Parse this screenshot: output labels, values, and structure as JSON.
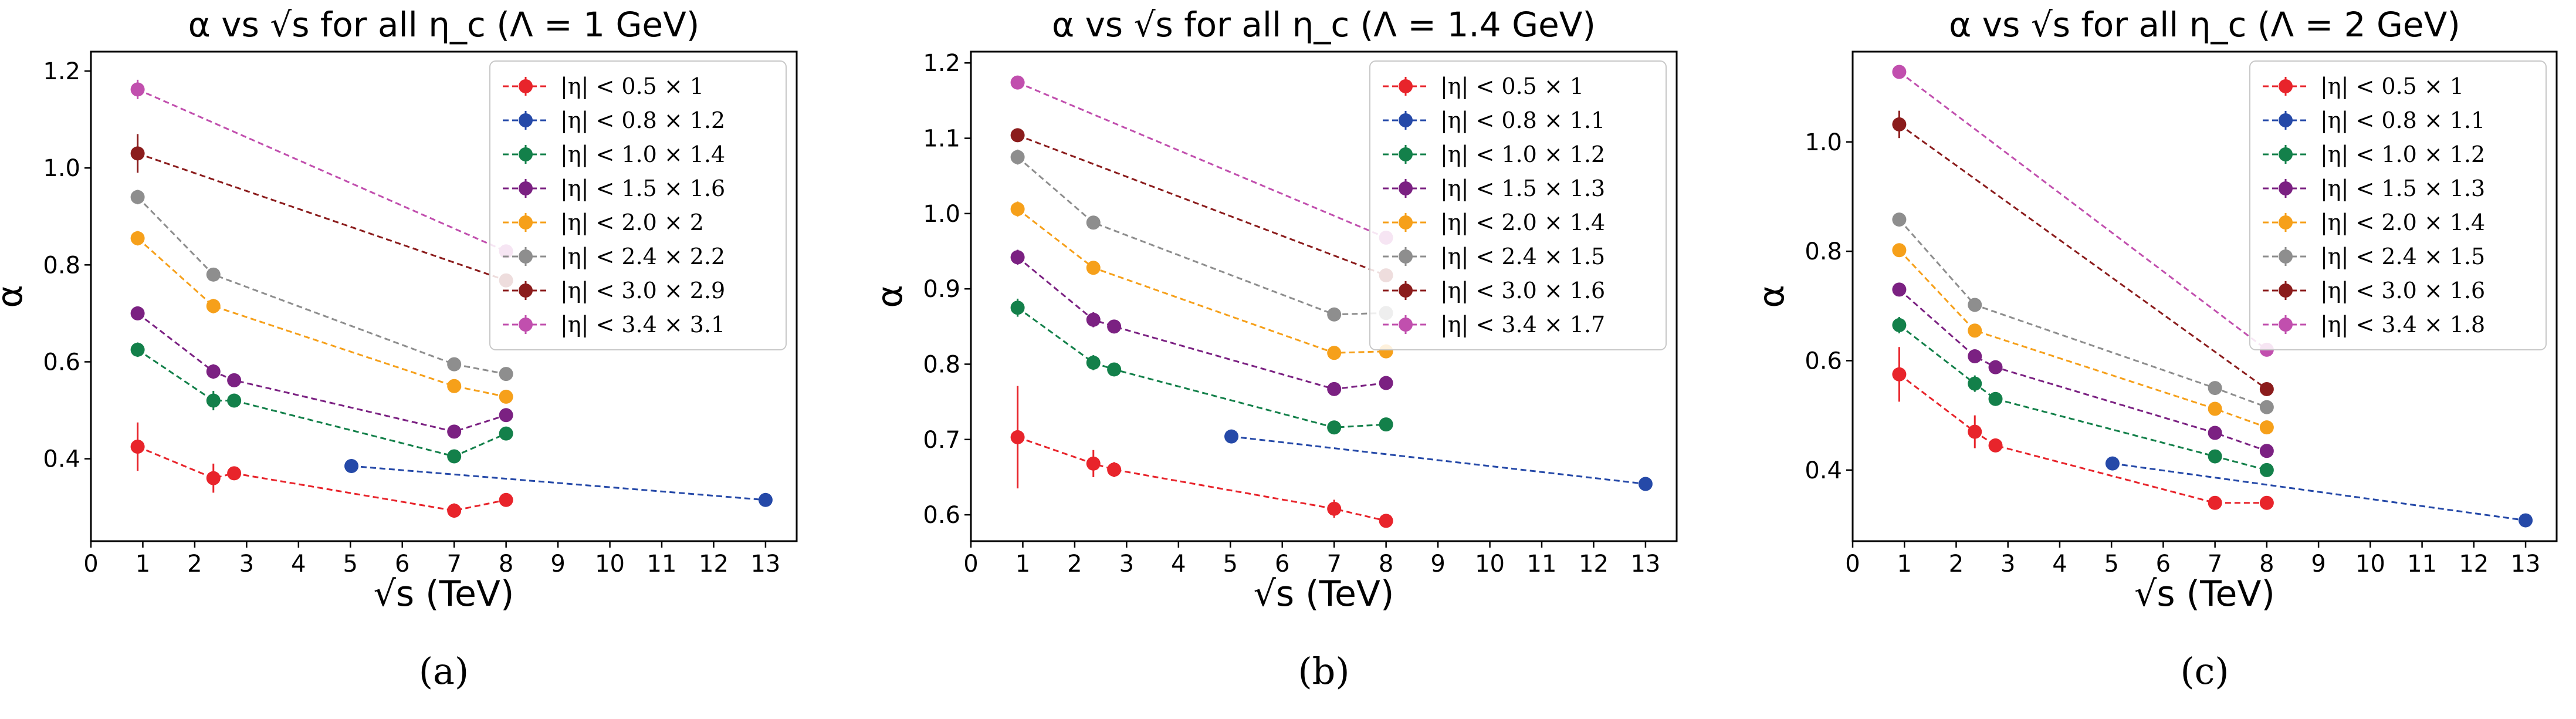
{
  "chart_data": [
    {
      "type": "line",
      "title": "α vs √s for all η_c (Λ = 1 GeV)",
      "xlabel": "√s (TeV)",
      "ylabel": "α",
      "xlim": [
        0,
        13.6
      ],
      "ylim": [
        0.23,
        1.24
      ],
      "xticks": [
        0,
        1,
        2,
        3,
        4,
        5,
        6,
        7,
        8,
        9,
        10,
        11,
        12,
        13
      ],
      "yticks": [
        0.4,
        0.6,
        0.8,
        1.0,
        1.2
      ],
      "grid": false,
      "legend_position": "top-right",
      "caption": "(a)",
      "series": [
        {
          "name": "|η| < 0.5 × 1",
          "color": "#e8242b",
          "x": [
            0.9,
            2.36,
            2.76,
            7,
            8
          ],
          "y": [
            0.425,
            0.36,
            0.37,
            0.293,
            0.315
          ],
          "err": [
            0.05,
            0.03,
            0.012,
            0.015,
            0.01
          ]
        },
        {
          "name": "|η| < 0.8 × 1.2",
          "color": "#2549a8",
          "x": [
            5.02,
            13
          ],
          "y": [
            0.385,
            0.315
          ],
          "err": [
            0.005,
            0.005
          ]
        },
        {
          "name": "|η| < 1.0 × 1.4",
          "color": "#13804a",
          "x": [
            0.9,
            2.36,
            2.76,
            7,
            8
          ],
          "y": [
            0.625,
            0.52,
            0.52,
            0.405,
            0.452
          ],
          "err": [
            0.015,
            0.02,
            0.01,
            0.012,
            0.01
          ]
        },
        {
          "name": "|η| < 1.5 × 1.6",
          "color": "#7b2182",
          "x": [
            0.9,
            2.36,
            2.76,
            7,
            8
          ],
          "y": [
            0.7,
            0.58,
            0.562,
            0.456,
            0.49
          ],
          "err": [
            0.012,
            0.015,
            0.01,
            0.01,
            0.008
          ]
        },
        {
          "name": "|η| < 2.0 × 2",
          "color": "#f6a01a",
          "x": [
            0.9,
            2.36,
            7,
            8
          ],
          "y": [
            0.855,
            0.715,
            0.55,
            0.528
          ],
          "err": [
            0.015,
            0.015,
            0.012,
            0.008
          ]
        },
        {
          "name": "|η| < 2.4 × 2.2",
          "color": "#8e8e8e",
          "x": [
            0.9,
            2.36,
            7,
            8
          ],
          "y": [
            0.94,
            0.78,
            0.595,
            0.575
          ],
          "err": [
            0.015,
            0.012,
            0.01,
            0.008
          ]
        },
        {
          "name": "|η| < 3.0 × 2.9",
          "color": "#8b1c1c",
          "x": [
            0.9,
            8
          ],
          "y": [
            1.03,
            0.768
          ],
          "err": [
            0.04,
            0.008
          ]
        },
        {
          "name": "|η| < 3.4 × 3.1",
          "color": "#c14fae",
          "x": [
            0.9,
            8
          ],
          "y": [
            1.162,
            0.828
          ],
          "err": [
            0.02,
            0.008
          ]
        }
      ]
    },
    {
      "type": "line",
      "title": "α vs √s for all η_c (Λ = 1.4 GeV)",
      "xlabel": "√s (TeV)",
      "ylabel": "α",
      "xlim": [
        0,
        13.6
      ],
      "ylim": [
        0.565,
        1.215
      ],
      "xticks": [
        0,
        1,
        2,
        3,
        4,
        5,
        6,
        7,
        8,
        9,
        10,
        11,
        12,
        13
      ],
      "yticks": [
        0.6,
        0.7,
        0.8,
        0.9,
        1.0,
        1.1,
        1.2
      ],
      "grid": false,
      "legend_position": "top-right",
      "caption": "(b)",
      "series": [
        {
          "name": "|η| < 0.5 × 1",
          "color": "#e8242b",
          "x": [
            0.9,
            2.36,
            2.76,
            7,
            8
          ],
          "y": [
            0.703,
            0.668,
            0.66,
            0.608,
            0.592
          ],
          "err": [
            0.068,
            0.018,
            0.01,
            0.012,
            0.008
          ]
        },
        {
          "name": "|η| < 0.8 × 1.1",
          "color": "#2549a8",
          "x": [
            5.02,
            13
          ],
          "y": [
            0.704,
            0.641
          ],
          "err": [
            0.004,
            0.004
          ]
        },
        {
          "name": "|η| < 1.0 × 1.2",
          "color": "#13804a",
          "x": [
            0.9,
            2.36,
            2.76,
            7,
            8
          ],
          "y": [
            0.875,
            0.802,
            0.793,
            0.716,
            0.72
          ],
          "err": [
            0.012,
            0.01,
            0.008,
            0.008,
            0.006
          ]
        },
        {
          "name": "|η| < 1.5 × 1.3",
          "color": "#7b2182",
          "x": [
            0.9,
            2.36,
            2.76,
            7,
            8
          ],
          "y": [
            0.942,
            0.859,
            0.85,
            0.767,
            0.775
          ],
          "err": [
            0.01,
            0.01,
            0.008,
            0.008,
            0.006
          ]
        },
        {
          "name": "|η| < 2.0 × 1.4",
          "color": "#f6a01a",
          "x": [
            0.9,
            2.36,
            7,
            8
          ],
          "y": [
            1.006,
            0.928,
            0.815,
            0.817
          ],
          "err": [
            0.01,
            0.008,
            0.008,
            0.006
          ]
        },
        {
          "name": "|η| < 2.4 × 1.5",
          "color": "#8e8e8e",
          "x": [
            0.9,
            2.36,
            7,
            8
          ],
          "y": [
            1.075,
            0.988,
            0.866,
            0.868
          ],
          "err": [
            0.01,
            0.008,
            0.008,
            0.006
          ]
        },
        {
          "name": "|η| < 3.0 × 1.6",
          "color": "#8b1c1c",
          "x": [
            0.9,
            8
          ],
          "y": [
            1.104,
            0.918
          ],
          "err": [
            0.008,
            0.006
          ]
        },
        {
          "name": "|η| < 3.4 × 1.7",
          "color": "#c14fae",
          "x": [
            0.9,
            8
          ],
          "y": [
            1.174,
            0.968
          ],
          "err": [
            0.008,
            0.006
          ]
        }
      ]
    },
    {
      "type": "line",
      "title": "α vs √s for all η_c (Λ = 2 GeV)",
      "xlabel": "√s (TeV)",
      "ylabel": "α",
      "xlim": [
        0,
        13.6
      ],
      "ylim": [
        0.27,
        1.165
      ],
      "xticks": [
        0,
        1,
        2,
        3,
        4,
        5,
        6,
        7,
        8,
        9,
        10,
        11,
        12,
        13
      ],
      "yticks": [
        0.4,
        0.6,
        0.8,
        1.0
      ],
      "grid": false,
      "legend_position": "top-right",
      "caption": "(c)",
      "series": [
        {
          "name": "|η| < 0.5 × 1",
          "color": "#e8242b",
          "x": [
            0.9,
            2.36,
            2.76,
            7,
            8
          ],
          "y": [
            0.575,
            0.47,
            0.445,
            0.34,
            0.34
          ],
          "err": [
            0.05,
            0.03,
            0.012,
            0.01,
            0.008
          ]
        },
        {
          "name": "|η| < 0.8 × 1.1",
          "color": "#2549a8",
          "x": [
            5.02,
            13
          ],
          "y": [
            0.412,
            0.308
          ],
          "err": [
            0.005,
            0.005
          ]
        },
        {
          "name": "|η| < 1.0 × 1.2",
          "color": "#13804a",
          "x": [
            0.9,
            2.36,
            2.76,
            7,
            8
          ],
          "y": [
            0.665,
            0.558,
            0.53,
            0.425,
            0.4
          ],
          "err": [
            0.015,
            0.015,
            0.01,
            0.01,
            0.008
          ]
        },
        {
          "name": "|η| < 1.5 × 1.3",
          "color": "#7b2182",
          "x": [
            0.9,
            2.36,
            2.76,
            7,
            8
          ],
          "y": [
            0.73,
            0.608,
            0.588,
            0.468,
            0.435
          ],
          "err": [
            0.012,
            0.012,
            0.01,
            0.008,
            0.008
          ]
        },
        {
          "name": "|η| < 2.0 × 1.4",
          "color": "#f6a01a",
          "x": [
            0.9,
            2.36,
            7,
            8
          ],
          "y": [
            0.802,
            0.655,
            0.512,
            0.478
          ],
          "err": [
            0.012,
            0.012,
            0.008,
            0.008
          ]
        },
        {
          "name": "|η| < 2.4 × 1.5",
          "color": "#8e8e8e",
          "x": [
            0.9,
            2.36,
            7,
            8
          ],
          "y": [
            0.858,
            0.702,
            0.55,
            0.515
          ],
          "err": [
            0.01,
            0.01,
            0.008,
            0.008
          ]
        },
        {
          "name": "|η| < 3.0 × 1.6",
          "color": "#8b1c1c",
          "x": [
            0.9,
            8
          ],
          "y": [
            1.032,
            0.548
          ],
          "err": [
            0.025,
            0.008
          ]
        },
        {
          "name": "|η| < 3.4 × 1.8",
          "color": "#c14fae",
          "x": [
            0.9,
            8
          ],
          "y": [
            1.128,
            0.62
          ],
          "err": [
            0.008,
            0.008
          ]
        }
      ]
    }
  ]
}
